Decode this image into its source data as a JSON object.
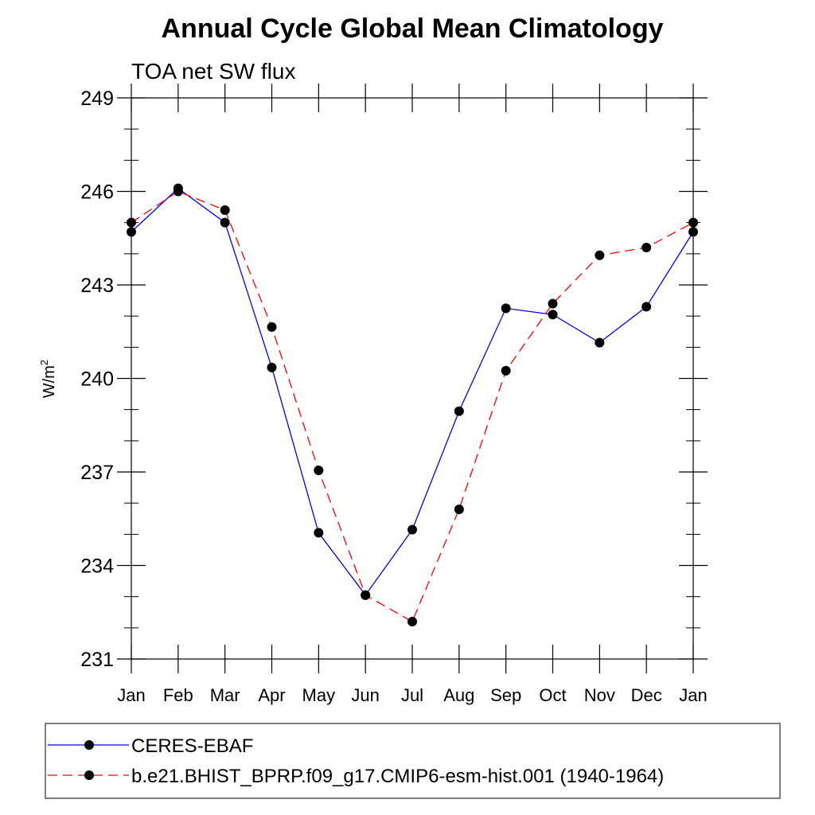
{
  "chart_data": {
    "type": "line",
    "title": "Annual Cycle Global Mean Climatology",
    "subtitle": "TOA net SW flux",
    "ylabel": "W/m",
    "ylabel_superscript": "2",
    "ylim": [
      231,
      249
    ],
    "yticks": [
      "231",
      "234",
      "237",
      "240",
      "243",
      "246",
      "249"
    ],
    "categories": [
      "Jan",
      "Feb",
      "Mar",
      "Apr",
      "May",
      "Jun",
      "Jul",
      "Aug",
      "Sep",
      "Oct",
      "Nov",
      "Dec",
      "Jan"
    ],
    "grid": false,
    "legend_position": "bottom",
    "series": [
      {
        "name": "CERES-EBAF",
        "color": "#0000ff",
        "dash": "solid",
        "marker": "filled-circle",
        "values": [
          244.7,
          246.1,
          245.0,
          240.35,
          235.05,
          233.05,
          235.15,
          238.95,
          242.25,
          242.05,
          241.15,
          242.3,
          244.7
        ]
      },
      {
        "name": "b.e21.BHIST_BPRP.f09_g17.CMIP6-esm-hist.001 (1940-1964)",
        "color": "#ff0000",
        "dash": "dashed",
        "marker": "filled-circle",
        "values": [
          245.0,
          246.0,
          245.4,
          241.65,
          237.05,
          233.05,
          232.2,
          235.8,
          240.25,
          242.4,
          243.95,
          244.2,
          245.0
        ]
      }
    ]
  }
}
